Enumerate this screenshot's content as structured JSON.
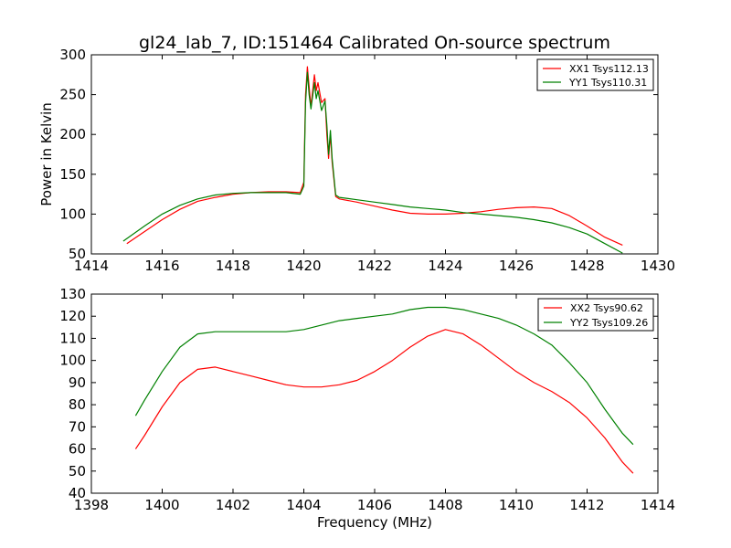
{
  "chart_data": [
    {
      "type": "line",
      "title": "gl24_lab_7, ID:151464 Calibrated On-source spectrum",
      "xlabel": "",
      "ylabel": "Power in Kelvin",
      "xlim": [
        1414,
        1430
      ],
      "ylim": [
        50,
        300
      ],
      "xticks": [
        1414,
        1416,
        1418,
        1420,
        1422,
        1424,
        1426,
        1428,
        1430
      ],
      "yticks": [
        50,
        100,
        150,
        200,
        250,
        300
      ],
      "xtick_labels": [
        "1414",
        "1416",
        "1418",
        "1420",
        "1422",
        "1424",
        "1426",
        "1428",
        "1430"
      ],
      "ytick_labels": [
        "50",
        "100",
        "150",
        "200",
        "250",
        "300"
      ],
      "legend_position": "top-right",
      "series": [
        {
          "name": "XX1 Tsys112.13",
          "color": "#ff0000",
          "x": [
            1415.0,
            1415.5,
            1416.0,
            1416.5,
            1417.0,
            1417.5,
            1418.0,
            1418.5,
            1419.0,
            1419.5,
            1419.9,
            1420.0,
            1420.05,
            1420.1,
            1420.15,
            1420.2,
            1420.3,
            1420.35,
            1420.4,
            1420.5,
            1420.6,
            1420.65,
            1420.7,
            1420.75,
            1420.8,
            1420.9,
            1421.0,
            1421.5,
            1422.0,
            1422.5,
            1423.0,
            1423.5,
            1424.0,
            1424.5,
            1425.0,
            1425.5,
            1426.0,
            1426.5,
            1427.0,
            1427.5,
            1428.0,
            1428.5,
            1429.0
          ],
          "y": [
            63,
            78,
            93,
            106,
            116,
            121,
            125,
            127,
            128,
            128,
            127,
            140,
            250,
            285,
            260,
            235,
            275,
            255,
            265,
            240,
            245,
            200,
            170,
            200,
            165,
            122,
            119,
            115,
            110,
            105,
            101,
            100,
            100,
            101,
            103,
            106,
            108,
            109,
            107,
            98,
            85,
            71,
            61
          ]
        },
        {
          "name": "YY1 Tsys110.31",
          "color": "#008000",
          "x": [
            1414.9,
            1415.5,
            1416.0,
            1416.5,
            1417.0,
            1417.5,
            1418.0,
            1418.5,
            1419.0,
            1419.5,
            1419.9,
            1420.0,
            1420.05,
            1420.1,
            1420.15,
            1420.2,
            1420.3,
            1420.35,
            1420.4,
            1420.5,
            1420.6,
            1420.65,
            1420.7,
            1420.75,
            1420.8,
            1420.9,
            1421.0,
            1421.5,
            1422.0,
            1422.5,
            1423.0,
            1423.5,
            1424.0,
            1424.5,
            1425.0,
            1425.5,
            1426.0,
            1426.5,
            1427.0,
            1427.5,
            1428.0,
            1428.5,
            1429.0
          ],
          "y": [
            66,
            85,
            100,
            111,
            119,
            124,
            126,
            127,
            127,
            127,
            125,
            135,
            240,
            278,
            250,
            232,
            265,
            245,
            255,
            230,
            242,
            212,
            175,
            205,
            170,
            124,
            121,
            118,
            115,
            112,
            109,
            107,
            105,
            102,
            100,
            98,
            96,
            93,
            89,
            83,
            75,
            63,
            51
          ]
        }
      ]
    },
    {
      "type": "line",
      "title": "",
      "xlabel": "Frequency (MHz)",
      "ylabel": "",
      "xlim": [
        1398,
        1414
      ],
      "ylim": [
        40,
        130
      ],
      "xticks": [
        1398,
        1400,
        1402,
        1404,
        1406,
        1408,
        1410,
        1412,
        1414
      ],
      "yticks": [
        40,
        50,
        60,
        70,
        80,
        90,
        100,
        110,
        120,
        130
      ],
      "xtick_labels": [
        "1398",
        "1400",
        "1402",
        "1404",
        "1406",
        "1408",
        "1410",
        "1412",
        "1414"
      ],
      "ytick_labels": [
        "40",
        "50",
        "60",
        "70",
        "80",
        "90",
        "100",
        "110",
        "120",
        "130"
      ],
      "legend_position": "top-right",
      "series": [
        {
          "name": "XX2 Tsys90.62",
          "color": "#ff0000",
          "x": [
            1399.25,
            1399.5,
            1400.0,
            1400.5,
            1401.0,
            1401.5,
            1402.0,
            1402.5,
            1403.0,
            1403.5,
            1404.0,
            1404.5,
            1405.0,
            1405.5,
            1406.0,
            1406.5,
            1407.0,
            1407.5,
            1408.0,
            1408.5,
            1409.0,
            1409.5,
            1410.0,
            1410.5,
            1411.0,
            1411.5,
            1412.0,
            1412.5,
            1413.0,
            1413.3
          ],
          "y": [
            60,
            66,
            79,
            90,
            96,
            97,
            95,
            93,
            91,
            89,
            88,
            88,
            89,
            91,
            95,
            100,
            106,
            111,
            114,
            112,
            107,
            101,
            95,
            90,
            86,
            81,
            74,
            65,
            54,
            49
          ]
        },
        {
          "name": "YY2 Tsys109.26",
          "color": "#008000",
          "x": [
            1399.25,
            1399.5,
            1400.0,
            1400.5,
            1401.0,
            1401.5,
            1402.0,
            1402.5,
            1403.0,
            1403.5,
            1404.0,
            1404.5,
            1405.0,
            1405.5,
            1406.0,
            1406.5,
            1407.0,
            1407.5,
            1408.0,
            1408.5,
            1409.0,
            1409.5,
            1410.0,
            1410.5,
            1411.0,
            1411.5,
            1412.0,
            1412.5,
            1413.0,
            1413.3
          ],
          "y": [
            75,
            82,
            95,
            106,
            112,
            113,
            113,
            113,
            113,
            113,
            114,
            116,
            118,
            119,
            120,
            121,
            123,
            124,
            124,
            123,
            121,
            119,
            116,
            112,
            107,
            99,
            90,
            78,
            67,
            62
          ]
        }
      ]
    }
  ]
}
